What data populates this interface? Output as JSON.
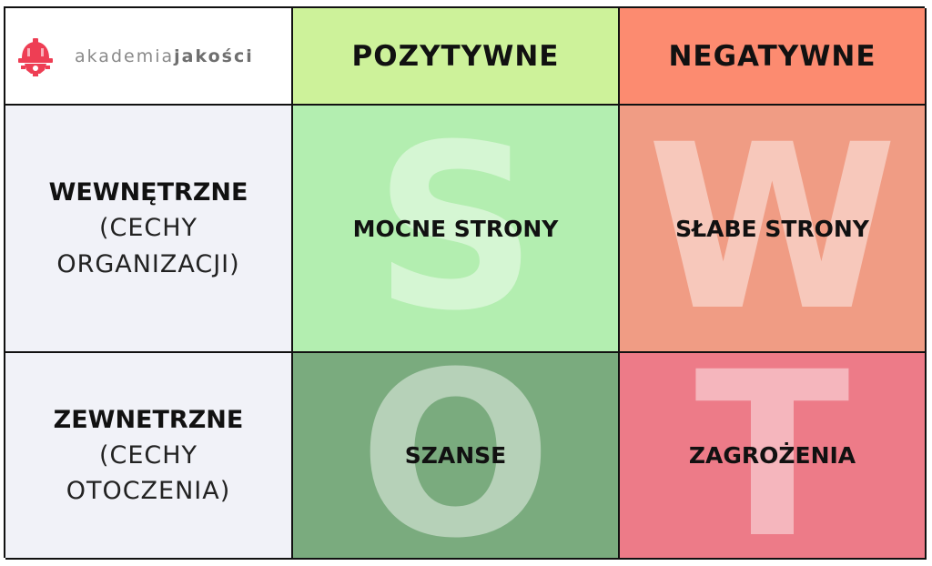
{
  "logo": {
    "text_regular": "akademia",
    "text_bold": "jakości",
    "icon": "gear-helmet-icon",
    "icon_color": "#ee3e54"
  },
  "columns": {
    "positive": "POZYTYWNE",
    "negative": "NEGATYWNE"
  },
  "rows": {
    "internal": {
      "title": "WEWNĘTRZNE",
      "sub1": "(CECHY",
      "sub2": "ORGANIZACJI)"
    },
    "external": {
      "title": "ZEWNETRZNE",
      "sub1": "(CECHY",
      "sub2": "OTOCZENIA)"
    }
  },
  "quadrants": {
    "strengths": {
      "letter": "S",
      "label": "MOCNE STRONY"
    },
    "weaknesses": {
      "letter": "W",
      "label": "SŁABE STRONY"
    },
    "opportunities": {
      "letter": "O",
      "label": "SZANSE"
    },
    "threats": {
      "letter": "T",
      "label": "ZAGROŻENIA"
    }
  },
  "colors": {
    "positive_header": "#cdf29a",
    "negative_header": "#fc8b70",
    "strengths": "#b3eeb0",
    "weaknesses": "#f09c84",
    "opportunities": "#7aab7e",
    "threats": "#ed7b88",
    "row_header_bg": "#f1f2f8"
  }
}
